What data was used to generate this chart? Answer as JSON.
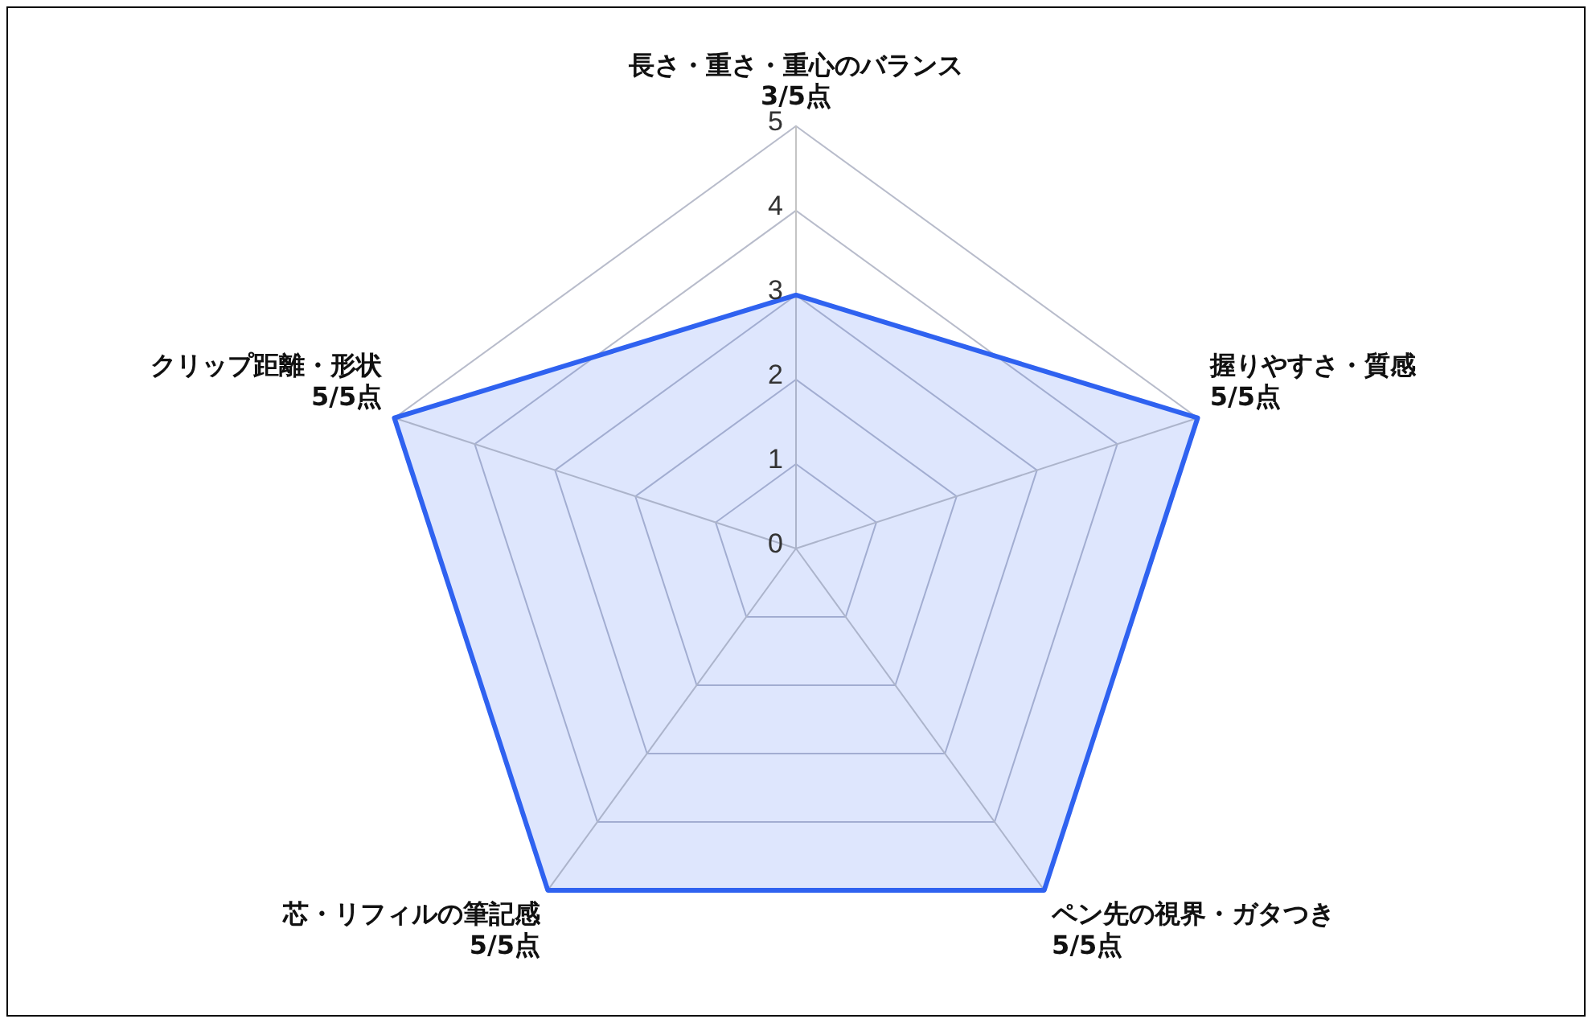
{
  "chart_data": {
    "type": "radar",
    "categories": [
      "長さ・重さ・重心のバランス\n3/5点",
      "握りやすさ・質感\n5/5点",
      "ペン先の視界・ガタつき\n5/5点",
      "芯・リフィルの筆記感\n5/5点",
      "クリップ距離・形状\n5/5点"
    ],
    "series": [
      {
        "color": "#2f62f0",
        "values": [
          3,
          5,
          5,
          5,
          5
        ]
      }
    ],
    "ylim": [
      0,
      5
    ],
    "yticks": [
      0,
      1,
      2,
      3,
      4,
      5
    ],
    "grid": true,
    "legend": false,
    "marker": "none"
  }
}
